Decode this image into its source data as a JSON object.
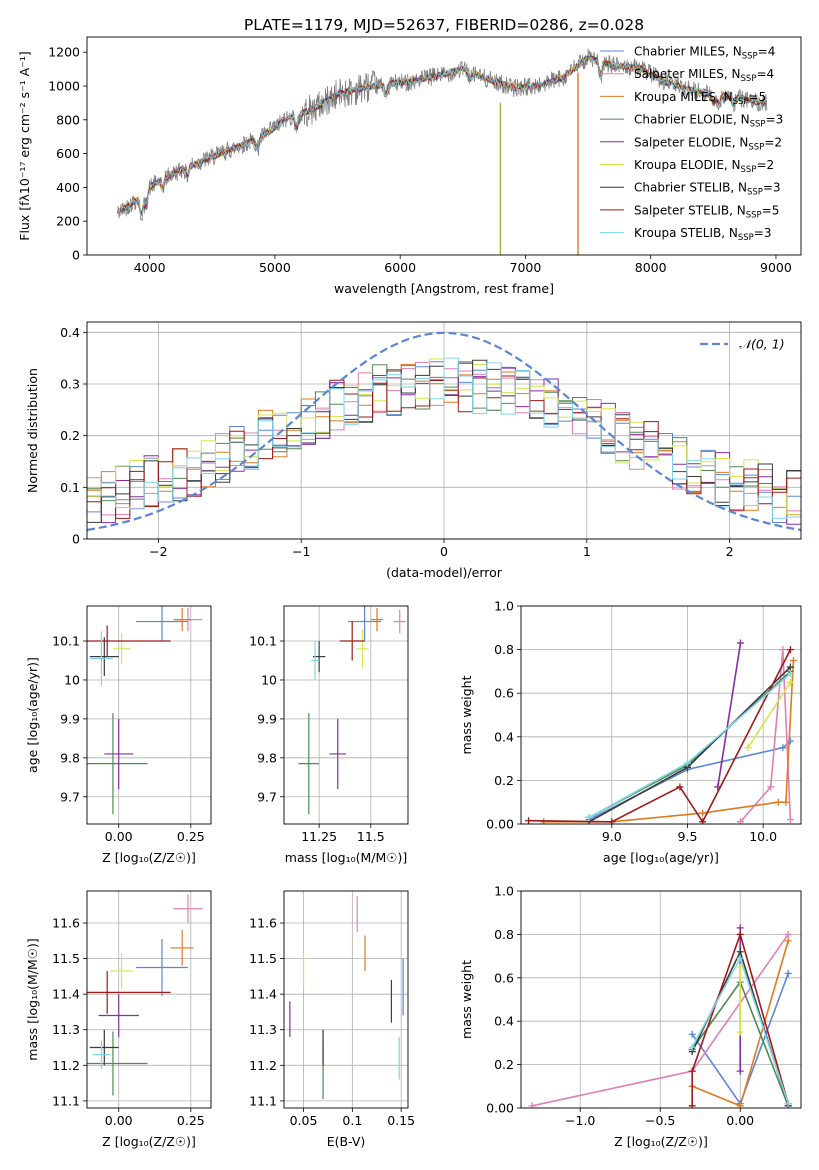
{
  "figure": {
    "title": "PLATE=1179, MJD=52637, FIBERID=0286, z=0.028"
  },
  "models": [
    {
      "label": "Chabrier MILES, N",
      "sub": "SSP",
      "tail": "=4",
      "color": "#5b86d8"
    },
    {
      "label": "Salpeter MILES, N",
      "sub": "SSP",
      "tail": "=4",
      "color": "#e07fb8"
    },
    {
      "label": "Kroupa MILES, N",
      "sub": "SSP",
      "tail": "=5",
      "color": "#e07a22"
    },
    {
      "label": "Chabrier ELODIE, N",
      "sub": "SSP",
      "tail": "=3",
      "color": "#4f8a55"
    },
    {
      "label": "Salpeter ELODIE, N",
      "sub": "SSP",
      "tail": "=2",
      "color": "#8a2ca8"
    },
    {
      "label": "Kroupa ELODIE, N",
      "sub": "SSP",
      "tail": "=2",
      "color": "#d6e64a"
    },
    {
      "label": "Chabrier STELIB, N",
      "sub": "SSP",
      "tail": "=3",
      "color": "#3b3b3b"
    },
    {
      "label": "Salpeter STELIB, N",
      "sub": "SSP",
      "tail": "=5",
      "color": "#a01818"
    },
    {
      "label": "Kroupa STELIB, N",
      "sub": "SSP",
      "tail": "=3",
      "color": "#7fd6e8"
    }
  ],
  "chart_data": [
    {
      "id": "spectrum",
      "type": "line",
      "xlabel": "wavelength [Angstrom, rest frame]",
      "ylabel": "Flux [fλ10⁻¹⁷ erg cm⁻² s⁻¹ A⁻¹]",
      "xlim": [
        3500,
        9200
      ],
      "ylim": [
        0,
        1290
      ],
      "xticks": [
        4000,
        5000,
        6000,
        7000,
        8000,
        9000
      ],
      "yticks": [
        0,
        200,
        400,
        600,
        800,
        1000,
        1200
      ],
      "continuum_x": [
        3750,
        3900,
        4000,
        4100,
        4300,
        4500,
        4700,
        4900,
        5100,
        5300,
        5500,
        5700,
        5900,
        6100,
        6300,
        6500,
        6700,
        6900,
        7100,
        7300,
        7500,
        7700,
        7900,
        8100,
        8300,
        8500,
        8700,
        8900
      ],
      "continuum_y": [
        250,
        330,
        400,
        450,
        520,
        580,
        640,
        700,
        810,
        860,
        950,
        990,
        1010,
        1030,
        1060,
        1100,
        1040,
        990,
        1000,
        1050,
        1170,
        1120,
        1110,
        1030,
        980,
        950,
        930,
        900
      ],
      "data_color": "#808080",
      "legend_loc": "upper right"
    },
    {
      "id": "residuals",
      "type": "line",
      "xlabel": "(data-model)/error",
      "ylabel": "Normed distribution",
      "xlim": [
        -2.5,
        2.5
      ],
      "ylim": [
        0,
        0.42
      ],
      "xticks": [
        -2,
        -1,
        0,
        1,
        2
      ],
      "yticks": [
        0.0,
        0.1,
        0.2,
        0.3,
        0.4
      ],
      "grid": true,
      "gaussian_label": "𝒩(0, 1)",
      "gaussian_color": "#5b86d8",
      "legend_loc": "upper right"
    },
    {
      "id": "age_vs_Z",
      "type": "scatter",
      "xlabel": "Z [log₁₀(Z/Z☉)]",
      "ylabel": "age  [log₁₀(age/yr)]",
      "xlim": [
        -0.11,
        0.32
      ],
      "ylim": [
        9.63,
        10.19
      ],
      "xticks": [
        0.0,
        0.25
      ],
      "yticks": [
        9.7,
        9.8,
        9.9,
        10.0,
        10.1
      ],
      "grid": true,
      "points": [
        {
          "x": 0.15,
          "y": 10.15,
          "ex": 0.09,
          "ey": 0.05
        },
        {
          "x": 0.24,
          "y": 10.155,
          "ex": 0.05,
          "ey": 0.03
        },
        {
          "x": 0.22,
          "y": 10.155,
          "ex": 0.03,
          "ey": 0.03
        },
        {
          "x": -0.02,
          "y": 9.785,
          "ex": 0.12,
          "ey": 0.13
        },
        {
          "x": 0.0,
          "y": 9.81,
          "ex": 0.05,
          "ey": 0.09
        },
        {
          "x": 0.01,
          "y": 10.08,
          "ex": 0.03,
          "ey": 0.04
        },
        {
          "x": -0.05,
          "y": 10.06,
          "ex": 0.05,
          "ey": 0.05
        },
        {
          "x": -0.04,
          "y": 10.1,
          "ex": 0.22,
          "ey": 0.04
        },
        {
          "x": -0.06,
          "y": 10.055,
          "ex": 0.04,
          "ey": 0.07
        }
      ]
    },
    {
      "id": "age_vs_mass",
      "type": "scatter",
      "xlabel": "mass [log₁₀(M/M☉)]",
      "ylabel": "",
      "xlim": [
        11.08,
        11.68
      ],
      "ylim": [
        9.63,
        10.19
      ],
      "xticks": [
        11.25,
        11.5
      ],
      "yticks": [
        9.7,
        9.8,
        9.9,
        10.0,
        10.1
      ],
      "grid": true,
      "points": [
        {
          "x": 11.47,
          "y": 10.15,
          "ex": 0.08,
          "ey": 0.05
        },
        {
          "x": 11.64,
          "y": 10.15,
          "ex": 0.03,
          "ey": 0.03
        },
        {
          "x": 11.53,
          "y": 10.155,
          "ex": 0.03,
          "ey": 0.03
        },
        {
          "x": 11.2,
          "y": 9.785,
          "ex": 0.05,
          "ey": 0.13
        },
        {
          "x": 11.34,
          "y": 9.81,
          "ex": 0.04,
          "ey": 0.09
        },
        {
          "x": 11.46,
          "y": 10.08,
          "ex": 0.03,
          "ey": 0.05
        },
        {
          "x": 11.25,
          "y": 10.06,
          "ex": 0.03,
          "ey": 0.04
        },
        {
          "x": 11.41,
          "y": 10.1,
          "ex": 0.06,
          "ey": 0.05
        },
        {
          "x": 11.23,
          "y": 10.05,
          "ex": 0.02,
          "ey": 0.05
        }
      ]
    },
    {
      "id": "weight_vs_age",
      "type": "line",
      "xlabel": "age  [log₁₀(age/yr)]",
      "ylabel": "mass weight",
      "xlim": [
        8.4,
        10.25
      ],
      "ylim": [
        0,
        1.0
      ],
      "xticks": [
        9.0,
        9.5,
        10.0
      ],
      "yticks": [
        0.0,
        0.2,
        0.4,
        0.6,
        0.8,
        1.0
      ],
      "grid": true,
      "series": [
        {
          "x": [
            8.85,
            9.5,
            10.13,
            10.18
          ],
          "y": [
            0.02,
            0.25,
            0.35,
            0.38
          ]
        },
        {
          "x": [
            9.85,
            10.05,
            10.13,
            10.18
          ],
          "y": [
            0.01,
            0.17,
            0.8,
            0.02
          ]
        },
        {
          "x": [
            8.55,
            9.0,
            9.6,
            10.1,
            10.15,
            10.2
          ],
          "y": [
            0.01,
            0.01,
            0.05,
            0.1,
            0.1,
            0.75
          ]
        },
        {
          "x": [
            8.85,
            9.5,
            10.18
          ],
          "y": [
            0.03,
            0.27,
            0.7
          ]
        },
        {
          "x": [
            9.7,
            9.85
          ],
          "y": [
            0.17,
            0.83
          ]
        },
        {
          "x": [
            9.9,
            10.18
          ],
          "y": [
            0.35,
            0.65
          ]
        },
        {
          "x": [
            8.85,
            9.5,
            10.18
          ],
          "y": [
            0.01,
            0.26,
            0.72
          ]
        },
        {
          "x": [
            8.45,
            9.0,
            9.45,
            9.6,
            10.18
          ],
          "y": [
            0.015,
            0.01,
            0.17,
            0.01,
            0.8
          ]
        },
        {
          "x": [
            8.85,
            9.5,
            10.18
          ],
          "y": [
            0.03,
            0.28,
            0.69
          ]
        }
      ]
    },
    {
      "id": "mass_vs_Z",
      "type": "scatter",
      "xlabel": "Z [log₁₀(Z/Z☉)]",
      "ylabel": "mass [log₁₀(M/M☉)]",
      "xlim": [
        -0.11,
        0.32
      ],
      "ylim": [
        11.08,
        11.69
      ],
      "xticks": [
        0.0,
        0.25
      ],
      "yticks": [
        11.1,
        11.2,
        11.3,
        11.4,
        11.5,
        11.6
      ],
      "grid": true,
      "points": [
        {
          "x": 0.15,
          "y": 11.475,
          "ex": 0.09,
          "ey": 0.08
        },
        {
          "x": 0.24,
          "y": 11.64,
          "ex": 0.05,
          "ey": 0.04
        },
        {
          "x": 0.22,
          "y": 11.53,
          "ex": 0.04,
          "ey": 0.05
        },
        {
          "x": -0.02,
          "y": 11.205,
          "ex": 0.12,
          "ey": 0.09
        },
        {
          "x": 0.0,
          "y": 11.34,
          "ex": 0.07,
          "ey": 0.06
        },
        {
          "x": 0.01,
          "y": 11.465,
          "ex": 0.04,
          "ey": 0.05
        },
        {
          "x": -0.05,
          "y": 11.25,
          "ex": 0.05,
          "ey": 0.05
        },
        {
          "x": -0.04,
          "y": 11.405,
          "ex": 0.22,
          "ey": 0.06
        },
        {
          "x": -0.06,
          "y": 11.23,
          "ex": 0.03,
          "ey": 0.04
        }
      ]
    },
    {
      "id": "mass_vs_ebv",
      "type": "scatter",
      "xlabel": "E(B-V)",
      "ylabel": "",
      "xlim": [
        0.03,
        0.157
      ],
      "ylim": [
        11.08,
        11.69
      ],
      "xticks": [
        0.05,
        0.1,
        0.15
      ],
      "yticks": [
        11.1,
        11.2,
        11.3,
        11.4,
        11.5,
        11.6
      ],
      "grid": true,
      "points": [
        {
          "x": 0.152,
          "y": 11.42,
          "ex": 0,
          "ey": 0.08
        },
        {
          "x": 0.105,
          "y": 11.625,
          "ex": 0,
          "ey": 0.05
        },
        {
          "x": 0.113,
          "y": 11.515,
          "ex": 0,
          "ey": 0.05
        },
        {
          "x": 0.07,
          "y": 11.185,
          "ex": 0,
          "ey": 0.08
        },
        {
          "x": 0.036,
          "y": 11.33,
          "ex": 0,
          "ey": 0.05
        },
        {
          "x": 0.05,
          "y": 11.465,
          "ex": 0,
          "ey": 0.05
        },
        {
          "x": 0.07,
          "y": 11.25,
          "ex": 0,
          "ey": 0.05
        },
        {
          "x": 0.14,
          "y": 11.38,
          "ex": 0,
          "ey": 0.06
        },
        {
          "x": 0.148,
          "y": 11.22,
          "ex": 0,
          "ey": 0.06
        }
      ]
    },
    {
      "id": "weight_vs_Z",
      "type": "line",
      "xlabel": "Z [log₁₀(Z/Z☉)]",
      "ylabel": "mass weight",
      "xlim": [
        -1.37,
        0.38
      ],
      "ylim": [
        0,
        1.0
      ],
      "xticks": [
        -1.0,
        -0.5,
        0.0
      ],
      "yticks": [
        0.0,
        0.2,
        0.4,
        0.6,
        0.8,
        1.0
      ],
      "grid": true,
      "series": [
        {
          "x": [
            -0.3,
            0.0,
            0.3
          ],
          "y": [
            0.34,
            0.02,
            0.62
          ]
        },
        {
          "x": [
            -1.3,
            -0.3,
            0.3
          ],
          "y": [
            0.01,
            0.17,
            0.8
          ]
        },
        {
          "x": [
            -0.3,
            0.0,
            0.3
          ],
          "y": [
            0.1,
            0.01,
            0.77
          ]
        },
        {
          "x": [
            -0.3,
            0.0,
            0.3
          ],
          "y": [
            0.27,
            0.58,
            0.01
          ]
        },
        {
          "x": [
            0.0,
            0.0
          ],
          "y": [
            0.17,
            0.83
          ]
        },
        {
          "x": [
            0.0,
            0.0
          ],
          "y": [
            0.35,
            0.65
          ]
        },
        {
          "x": [
            -0.3,
            0.0,
            0.3
          ],
          "y": [
            0.26,
            0.72,
            0.01
          ]
        },
        {
          "x": [
            -0.3,
            -0.3,
            0.0,
            0.3
          ],
          "y": [
            0.01,
            0.17,
            0.8,
            0.02
          ]
        },
        {
          "x": [
            -0.3,
            0.0,
            0.3
          ],
          "y": [
            0.28,
            0.69,
            0.02
          ]
        }
      ]
    }
  ]
}
